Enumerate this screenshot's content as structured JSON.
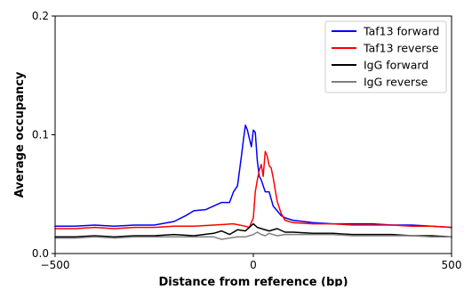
{
  "chart_data": {
    "type": "line",
    "title": "",
    "xlabel": "Distance from reference (bp)",
    "ylabel": "Average occupancy",
    "xlim": [
      -500,
      500
    ],
    "ylim": [
      0,
      0.2
    ],
    "x_ticks": [
      -500,
      0,
      500
    ],
    "x_tick_labels": [
      "−500",
      "0",
      "500"
    ],
    "y_ticks": [
      0.0,
      0.1,
      0.2
    ],
    "y_tick_labels": [
      "0.0",
      "0.1",
      "0.2"
    ],
    "grid": false,
    "legend_position": "top-right",
    "series": [
      {
        "name": "Taf13 forward",
        "color": "#0000ff",
        "x": [
          -500,
          -450,
          -400,
          -350,
          -300,
          -250,
          -200,
          -170,
          -150,
          -120,
          -100,
          -80,
          -60,
          -50,
          -40,
          -30,
          -25,
          -20,
          -15,
          -10,
          -5,
          0,
          5,
          10,
          15,
          20,
          25,
          30,
          40,
          50,
          60,
          70,
          80,
          100,
          150,
          200,
          250,
          300,
          350,
          400,
          450,
          500
        ],
        "y": [
          0.023,
          0.023,
          0.024,
          0.023,
          0.024,
          0.024,
          0.027,
          0.032,
          0.036,
          0.037,
          0.04,
          0.043,
          0.043,
          0.052,
          0.057,
          0.082,
          0.096,
          0.108,
          0.104,
          0.097,
          0.09,
          0.104,
          0.102,
          0.078,
          0.065,
          0.062,
          0.057,
          0.052,
          0.052,
          0.04,
          0.036,
          0.032,
          0.03,
          0.028,
          0.026,
          0.025,
          0.025,
          0.025,
          0.024,
          0.024,
          0.023,
          0.022
        ]
      },
      {
        "name": "Taf13 reverse",
        "color": "#ff0000",
        "x": [
          -500,
          -450,
          -400,
          -350,
          -300,
          -250,
          -200,
          -150,
          -100,
          -50,
          -20,
          -10,
          0,
          5,
          10,
          15,
          20,
          25,
          30,
          35,
          40,
          45,
          50,
          55,
          60,
          70,
          80,
          100,
          150,
          200,
          250,
          300,
          350,
          400,
          450,
          500
        ],
        "y": [
          0.021,
          0.021,
          0.022,
          0.021,
          0.022,
          0.022,
          0.023,
          0.023,
          0.024,
          0.025,
          0.023,
          0.022,
          0.03,
          0.052,
          0.062,
          0.07,
          0.075,
          0.065,
          0.086,
          0.082,
          0.074,
          0.072,
          0.064,
          0.054,
          0.044,
          0.034,
          0.028,
          0.026,
          0.025,
          0.025,
          0.024,
          0.024,
          0.024,
          0.023,
          0.023,
          0.022
        ]
      },
      {
        "name": "IgG forward",
        "color": "#000000",
        "x": [
          -500,
          -450,
          -400,
          -350,
          -300,
          -250,
          -200,
          -150,
          -100,
          -80,
          -60,
          -40,
          -20,
          0,
          10,
          20,
          40,
          60,
          80,
          100,
          150,
          200,
          250,
          300,
          350,
          400,
          450,
          500
        ],
        "y": [
          0.014,
          0.014,
          0.015,
          0.014,
          0.015,
          0.015,
          0.016,
          0.015,
          0.017,
          0.019,
          0.016,
          0.02,
          0.019,
          0.025,
          0.022,
          0.021,
          0.019,
          0.021,
          0.018,
          0.018,
          0.017,
          0.017,
          0.016,
          0.016,
          0.016,
          0.015,
          0.015,
          0.014
        ]
      },
      {
        "name": "IgG reverse",
        "color": "#808080",
        "x": [
          -500,
          -450,
          -400,
          -350,
          -300,
          -250,
          -200,
          -150,
          -100,
          -80,
          -60,
          -40,
          -20,
          0,
          10,
          20,
          30,
          40,
          60,
          80,
          100,
          150,
          200,
          250,
          300,
          350,
          400,
          450,
          500
        ],
        "y": [
          0.013,
          0.013,
          0.014,
          0.013,
          0.014,
          0.014,
          0.014,
          0.014,
          0.014,
          0.012,
          0.013,
          0.014,
          0.014,
          0.016,
          0.018,
          0.016,
          0.015,
          0.017,
          0.015,
          0.016,
          0.016,
          0.016,
          0.016,
          0.015,
          0.015,
          0.015,
          0.015,
          0.014,
          0.014
        ]
      }
    ]
  }
}
